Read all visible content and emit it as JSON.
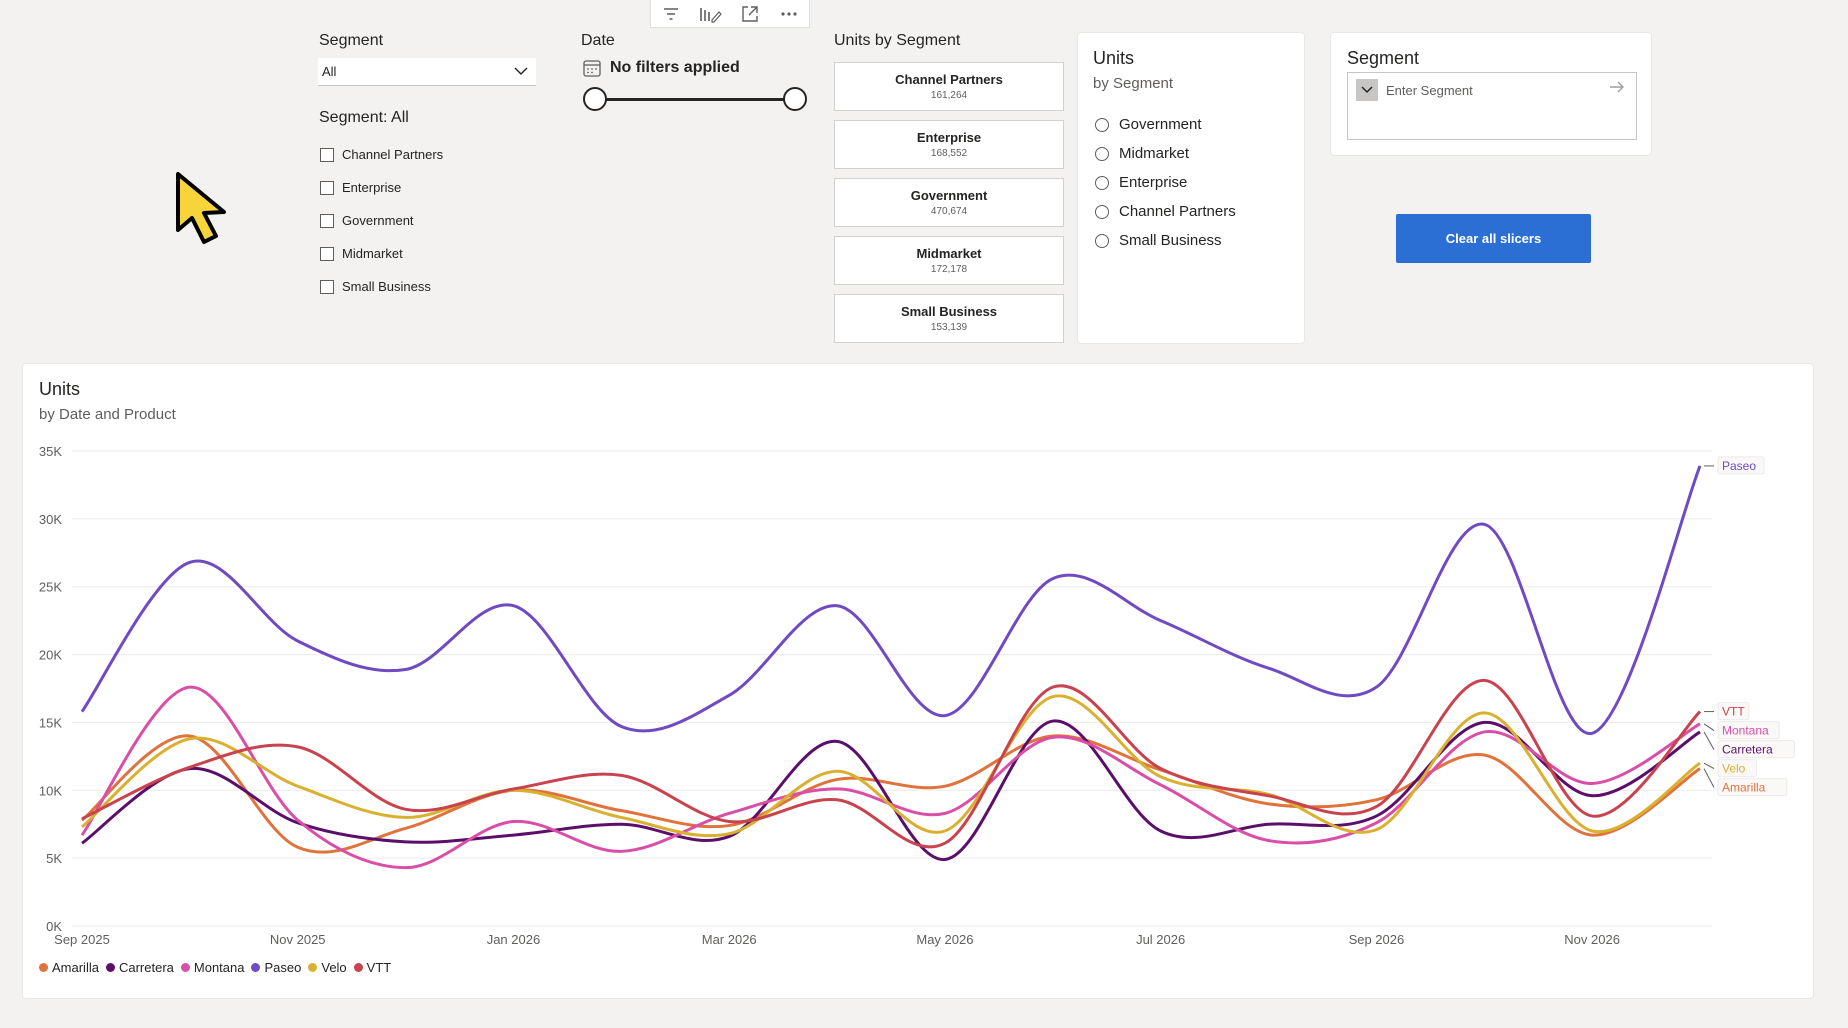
{
  "toolbar": {
    "icons": [
      "filter-icon",
      "format-visual-icon",
      "focus-mode-icon",
      "more-options-icon"
    ]
  },
  "segment_dropdown": {
    "label": "Segment",
    "value": "All"
  },
  "segment_list": {
    "header": "Segment: All",
    "items": [
      "Channel Partners",
      "Enterprise",
      "Government",
      "Midmarket",
      "Small Business"
    ]
  },
  "date_slicer": {
    "label": "Date",
    "status": "No filters applied"
  },
  "units_by_segment": {
    "label": "Units by Segment",
    "cards": [
      {
        "name": "Channel Partners",
        "value": "161,264"
      },
      {
        "name": "Enterprise",
        "value": "168,552"
      },
      {
        "name": "Government",
        "value": "470,674"
      },
      {
        "name": "Midmarket",
        "value": "172,178"
      },
      {
        "name": "Small Business",
        "value": "153,139"
      }
    ]
  },
  "units_panel": {
    "title": "Units",
    "subtitle": "by Segment",
    "options": [
      "Government",
      "Midmarket",
      "Enterprise",
      "Channel Partners",
      "Small Business"
    ]
  },
  "segment_search": {
    "title": "Segment",
    "placeholder": "Enter Segment"
  },
  "clear_button": {
    "label": "Clear all slicers",
    "color": "#2b6fd4"
  },
  "chart_data": {
    "type": "line",
    "title": "Units",
    "subtitle": "by Date and Product",
    "xlabel": "",
    "ylabel": "",
    "x": [
      "2025-09",
      "2025-10",
      "2025-11",
      "2025-12",
      "2026-01",
      "2026-02",
      "2026-03",
      "2026-04",
      "2026-05",
      "2026-06",
      "2026-07",
      "2026-08",
      "2026-09",
      "2026-10",
      "2026-11",
      "2026-12"
    ],
    "x_tick_labels": [
      "Sep 2025",
      "Nov 2025",
      "Jan 2026",
      "Mar 2026",
      "May 2026",
      "Jul 2026",
      "Sep 2026",
      "Nov 2026"
    ],
    "y_tick_labels": [
      "0K",
      "5K",
      "10K",
      "15K",
      "20K",
      "25K",
      "30K",
      "35K"
    ],
    "ylim": [
      0,
      35000
    ],
    "grid": true,
    "legend_position": "bottom-left",
    "series": [
      {
        "name": "Amarilla",
        "color": "#e0733c",
        "values": [
          7800,
          14000,
          5800,
          7200,
          10000,
          8500,
          7400,
          10800,
          10300,
          14000,
          11500,
          9000,
          9300,
          12600,
          6700,
          11600
        ]
      },
      {
        "name": "Carretera",
        "color": "#5b0f6a",
        "values": [
          6100,
          11600,
          7600,
          6200,
          6700,
          7500,
          6600,
          13600,
          4900,
          15100,
          7000,
          7500,
          8100,
          15000,
          9600,
          14300
        ]
      },
      {
        "name": "Montana",
        "color": "#d94fa8",
        "values": [
          6700,
          17600,
          7800,
          4300,
          7700,
          5500,
          8300,
          10100,
          8300,
          13900,
          10400,
          6300,
          7600,
          14300,
          10500,
          14900
        ]
      },
      {
        "name": "Paseo",
        "color": "#6f4ac3",
        "values": [
          15800,
          26800,
          21000,
          18900,
          23600,
          14700,
          17000,
          23600,
          15500,
          25600,
          22500,
          19000,
          17600,
          29600,
          14200,
          33900
        ]
      },
      {
        "name": "Velo",
        "color": "#d9b02f",
        "values": [
          7300,
          13800,
          10300,
          8000,
          10000,
          8000,
          6800,
          11400,
          7000,
          16900,
          11000,
          9700,
          7100,
          15700,
          7000,
          12000
        ]
      },
      {
        "name": "VTT",
        "color": "#c9434e",
        "values": [
          7900,
          11700,
          13200,
          8600,
          10100,
          11100,
          7700,
          9300,
          6100,
          17600,
          11600,
          9600,
          8800,
          18100,
          8100,
          15800
        ]
      }
    ]
  }
}
